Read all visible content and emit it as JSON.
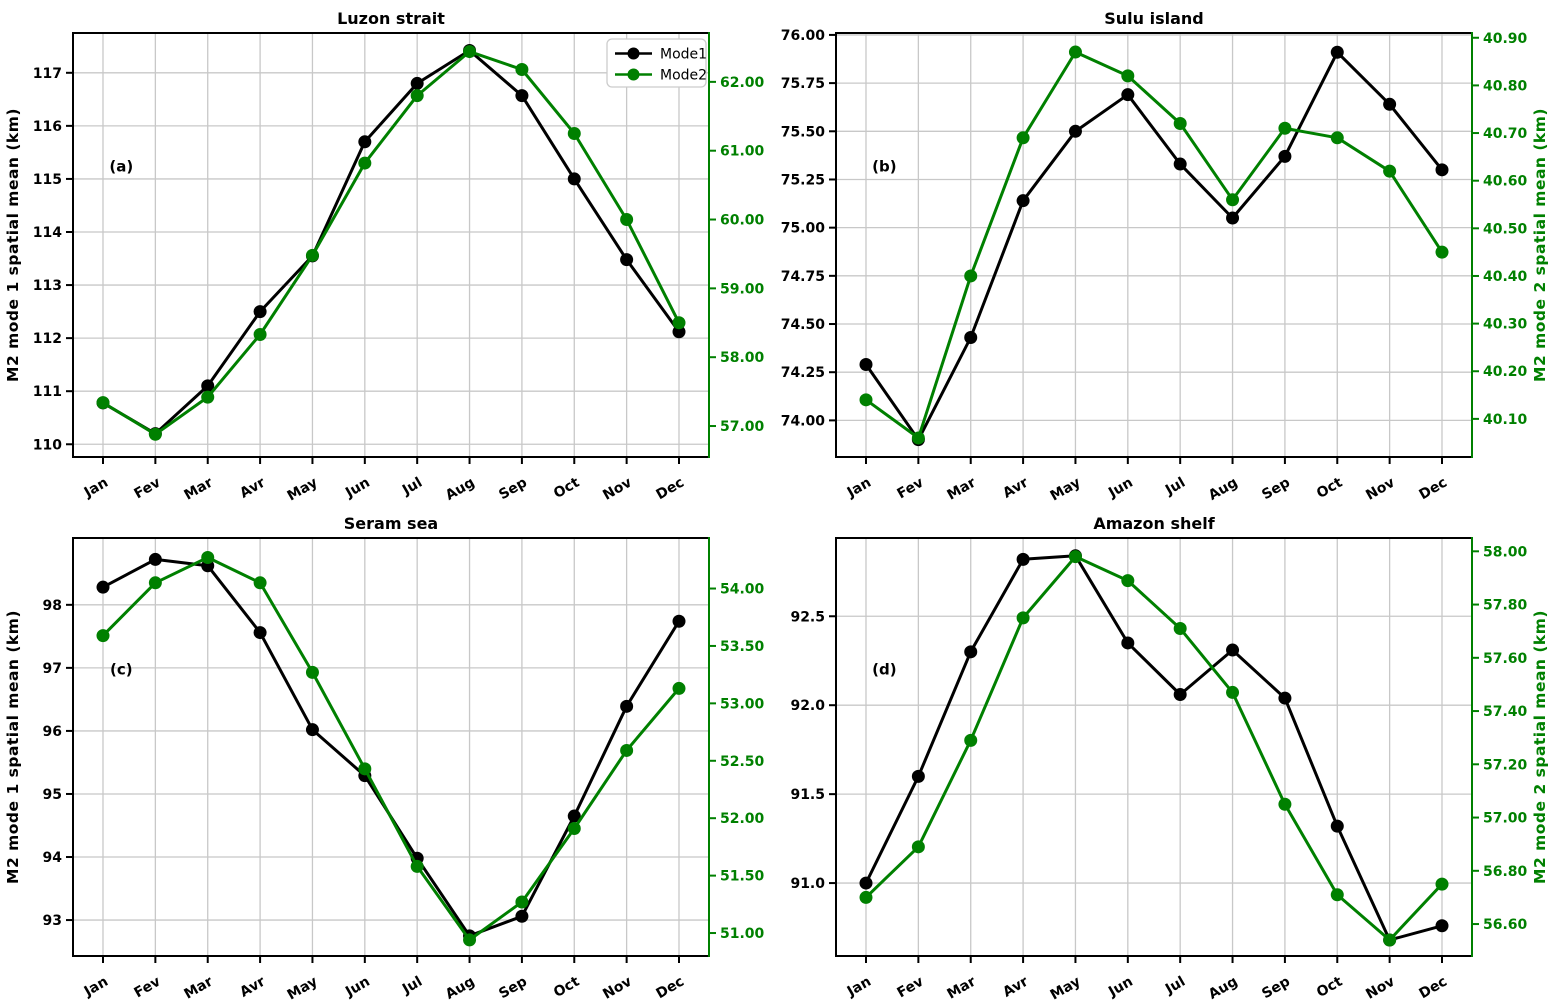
{
  "figure": {
    "legend": {
      "items": [
        {
          "label": "Mode1",
          "color": "#000000"
        },
        {
          "label": "Mode2",
          "color": "#008000"
        }
      ]
    },
    "colors": {
      "mode1": "#000000",
      "mode2": "#008000",
      "grid": "#c8c8c8",
      "spine": "#000000",
      "right_spine": "#008000",
      "background": "#ffffff"
    },
    "months": [
      "Jan",
      "Fev",
      "Mar",
      "Avr",
      "May",
      "Jun",
      "Jul",
      "Aug",
      "Sep",
      "Oct",
      "Nov",
      "Dec"
    ]
  },
  "chart_data": [
    {
      "type": "line",
      "title": "Luzon strait",
      "panel_label": "(a)",
      "show_legend": true,
      "categories": [
        "Jan",
        "Fev",
        "Mar",
        "Avr",
        "May",
        "Jun",
        "Jul",
        "Aug",
        "Sep",
        "Oct",
        "Nov",
        "Dec"
      ],
      "left_axis": {
        "label": "M2 mode 1 spatial mean (km)",
        "tick_values": [
          110,
          111,
          112,
          113,
          114,
          115,
          116,
          117
        ],
        "tick_labels": [
          "110",
          "111",
          "112",
          "113",
          "114",
          "115",
          "116",
          "117"
        ],
        "lim": [
          109.76,
          117.75
        ],
        "color": "#000000"
      },
      "right_axis": {
        "label": "",
        "tick_values": [
          57,
          58,
          59,
          60,
          61,
          62
        ],
        "tick_labels": [
          "57.00",
          "58.00",
          "59.00",
          "60.00",
          "61.00",
          "62.00"
        ],
        "lim": [
          56.55,
          62.71
        ],
        "color": "#008000"
      },
      "series": [
        {
          "name": "Mode1",
          "axis": "left",
          "color": "#000000",
          "values": [
            110.78,
            110.2,
            111.1,
            112.5,
            113.55,
            115.7,
            116.8,
            117.42,
            116.57,
            115.0,
            113.48,
            112.12
          ]
        },
        {
          "name": "Mode2",
          "axis": "right",
          "color": "#008000",
          "values": [
            57.34,
            56.88,
            57.42,
            58.33,
            59.48,
            60.82,
            61.8,
            62.44,
            62.18,
            61.25,
            60.0,
            58.5
          ]
        }
      ]
    },
    {
      "type": "line",
      "title": "Sulu island",
      "panel_label": "(b)",
      "show_legend": false,
      "categories": [
        "Jan",
        "Fev",
        "Mar",
        "Avr",
        "May",
        "Jun",
        "Jul",
        "Aug",
        "Sep",
        "Oct",
        "Nov",
        "Dec"
      ],
      "left_axis": {
        "label": "",
        "tick_values": [
          74.0,
          74.25,
          74.5,
          74.75,
          75.0,
          75.25,
          75.5,
          75.75,
          76.0
        ],
        "tick_labels": [
          "74.00",
          "74.25",
          "74.50",
          "74.75",
          "75.00",
          "75.25",
          "75.50",
          "75.75",
          "76.00"
        ],
        "lim": [
          73.81,
          76.01
        ],
        "color": "#000000"
      },
      "right_axis": {
        "label": "M2 mode 2 spatial mean (km)",
        "tick_values": [
          40.1,
          40.2,
          40.3,
          40.4,
          40.5,
          40.6,
          40.7,
          40.8,
          40.9
        ],
        "tick_labels": [
          "40.10",
          "40.20",
          "40.30",
          "40.40",
          "40.50",
          "40.60",
          "40.70",
          "40.80",
          "40.90"
        ],
        "lim": [
          40.02,
          40.91
        ],
        "color": "#008000"
      },
      "series": [
        {
          "name": "Mode1",
          "axis": "left",
          "color": "#000000",
          "values": [
            74.29,
            73.9,
            74.43,
            75.14,
            75.5,
            75.69,
            75.33,
            75.05,
            75.37,
            75.91,
            75.64,
            75.3
          ]
        },
        {
          "name": "Mode2",
          "axis": "right",
          "color": "#008000",
          "values": [
            40.14,
            40.06,
            40.4,
            40.69,
            40.87,
            40.82,
            40.72,
            40.56,
            40.71,
            40.69,
            40.62,
            40.45
          ]
        }
      ]
    },
    {
      "type": "line",
      "title": "Seram sea",
      "panel_label": "(c)",
      "show_legend": false,
      "categories": [
        "Jan",
        "Fev",
        "Mar",
        "Avr",
        "May",
        "Jun",
        "Jul",
        "Aug",
        "Sep",
        "Oct",
        "Nov",
        "Dec"
      ],
      "left_axis": {
        "label": "M2 mode 1 spatial mean (km)",
        "tick_values": [
          93,
          94,
          95,
          96,
          97,
          98
        ],
        "tick_labels": [
          "93",
          "94",
          "95",
          "96",
          "97",
          "98"
        ],
        "lim": [
          92.43,
          99.06
        ],
        "color": "#000000"
      },
      "right_axis": {
        "label": "",
        "tick_values": [
          51.0,
          51.5,
          52.0,
          52.5,
          53.0,
          53.5,
          54.0
        ],
        "tick_labels": [
          "51.00",
          "51.50",
          "52.00",
          "52.50",
          "53.00",
          "53.50",
          "54.00"
        ],
        "lim": [
          50.8,
          54.44
        ],
        "color": "#008000"
      },
      "series": [
        {
          "name": "Mode1",
          "axis": "left",
          "color": "#000000",
          "values": [
            98.28,
            98.72,
            98.62,
            97.56,
            96.02,
            95.29,
            93.98,
            92.75,
            93.06,
            94.65,
            96.39,
            97.74
          ]
        },
        {
          "name": "Mode2",
          "axis": "right",
          "color": "#008000",
          "values": [
            53.59,
            54.05,
            54.27,
            54.05,
            53.27,
            52.43,
            51.58,
            50.94,
            51.27,
            51.91,
            52.59,
            53.13
          ]
        }
      ]
    },
    {
      "type": "line",
      "title": "Amazon shelf",
      "panel_label": "(d)",
      "show_legend": false,
      "categories": [
        "Jan",
        "Fev",
        "Mar",
        "Avr",
        "May",
        "Jun",
        "Jul",
        "Aug",
        "Sep",
        "Oct",
        "Nov",
        "Dec"
      ],
      "left_axis": {
        "label": "",
        "tick_values": [
          91.0,
          91.5,
          92.0,
          92.5
        ],
        "tick_labels": [
          "91.0",
          "91.5",
          "92.0",
          "92.5"
        ],
        "lim": [
          90.59,
          92.94
        ],
        "color": "#000000"
      },
      "right_axis": {
        "label": "M2 mode 2 spatial mean (km)",
        "tick_values": [
          56.6,
          56.8,
          57.0,
          57.2,
          57.4,
          57.6,
          57.8,
          58.0
        ],
        "tick_labels": [
          "56.60",
          "56.80",
          "57.00",
          "57.20",
          "57.40",
          "57.60",
          "57.80",
          "58.00"
        ],
        "lim": [
          56.48,
          58.05
        ],
        "color": "#008000"
      },
      "series": [
        {
          "name": "Mode1",
          "axis": "left",
          "color": "#000000",
          "values": [
            91.0,
            91.6,
            92.3,
            92.82,
            92.84,
            92.35,
            92.06,
            92.31,
            92.04,
            91.32,
            90.68,
            90.76
          ]
        },
        {
          "name": "Mode2",
          "axis": "right",
          "color": "#008000",
          "values": [
            56.7,
            56.89,
            57.29,
            57.75,
            57.98,
            57.89,
            57.71,
            57.47,
            57.05,
            56.71,
            56.54,
            56.75
          ]
        }
      ]
    }
  ]
}
